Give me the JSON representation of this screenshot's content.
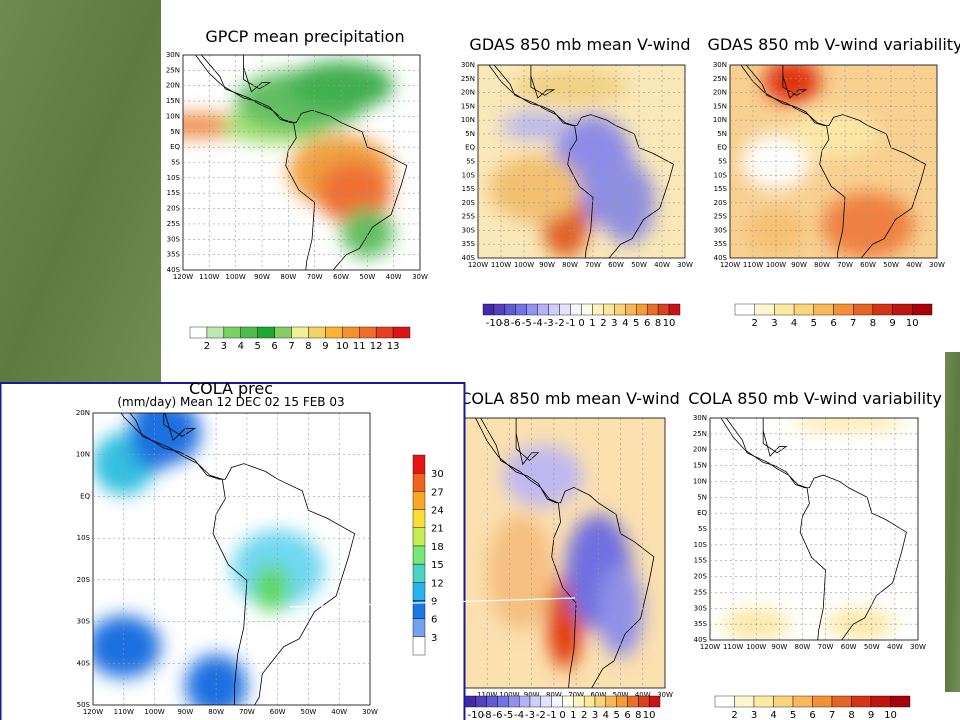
{
  "panels": [
    {
      "title": "GPCP mean precipitation",
      "lat_labels": [
        "30N",
        "25N",
        "20N",
        "15N",
        "10N",
        "5N",
        "EQ",
        "5S",
        "10S",
        "15S",
        "20S",
        "25S",
        "30S",
        "35S",
        "40S"
      ],
      "lon_labels": [
        "120W",
        "110W",
        "100W",
        "90W",
        "80W",
        "70W",
        "60W",
        "50W",
        "40W",
        "30W"
      ],
      "colorbar_labels": [
        2,
        3,
        4,
        5,
        6,
        7,
        8,
        9,
        10,
        11,
        12,
        13
      ]
    },
    {
      "title": "GDAS 850 mb mean V-wind",
      "lat_labels": [
        "30N",
        "25N",
        "20N",
        "15N",
        "10N",
        "5N",
        "EQ",
        "5S",
        "10S",
        "15S",
        "20S",
        "25S",
        "30S",
        "35S",
        "40S"
      ],
      "lon_labels": [
        "120W",
        "110W",
        "100W",
        "90W",
        "80W",
        "70W",
        "60W",
        "50W",
        "40W",
        "30W"
      ],
      "colorbar_labels": [
        -10,
        -8,
        -6,
        -5,
        -4,
        -3,
        -2,
        -1,
        0,
        1,
        2,
        3,
        4,
        5,
        6,
        8,
        10
      ]
    },
    {
      "title": "GDAS 850 mb V-wind variability",
      "lat_labels": [
        "30N",
        "25N",
        "20N",
        "15N",
        "10N",
        "5N",
        "EQ",
        "5S",
        "10S",
        "15S",
        "20S",
        "25S",
        "30S",
        "35S",
        "40S"
      ],
      "lon_labels": [
        "120W",
        "110W",
        "100W",
        "90W",
        "80W",
        "70W",
        "60W",
        "50W",
        "40W",
        "30W"
      ],
      "colorbar_labels": [
        2,
        3,
        4,
        5,
        6,
        7,
        8,
        9,
        10
      ]
    },
    {
      "title": "COLA 850 mb mean V-wind",
      "lat_labels": [],
      "lon_labels": [
        "110W",
        "100W",
        "90W",
        "80W",
        "70W",
        "60W",
        "50W",
        "40W",
        "30W"
      ],
      "colorbar_labels": [
        -10,
        -8,
        -6,
        -5,
        -4,
        -3,
        -2,
        -1,
        0,
        1,
        2,
        3,
        4,
        5,
        6,
        8,
        10
      ]
    },
    {
      "title": "COLA 850 mb V-wind variability",
      "lat_labels": [
        "30N",
        "25N",
        "20N",
        "15N",
        "10N",
        "5N",
        "EQ",
        "5S",
        "10S",
        "15S",
        "20S",
        "25S",
        "30S",
        "35S",
        "40S"
      ],
      "lon_labels": [
        "120W",
        "110W",
        "100W",
        "90W",
        "80W",
        "70W",
        "60W",
        "50W",
        "40W",
        "30W"
      ],
      "colorbar_labels": [
        2,
        3,
        4,
        5,
        6,
        7,
        8,
        9,
        10
      ]
    },
    {
      "title": "COLA prec",
      "subtitle": "(mm/day) Mean 12 DEC 02 15 FEB 03",
      "lat_labels": [
        "20N",
        "10N",
        "EQ",
        "10S",
        "20S",
        "30S",
        "40S",
        "50S"
      ],
      "lon_labels": [
        "120W",
        "110W",
        "100W",
        "90W",
        "80W",
        "70W",
        "60W",
        "50W",
        "40W",
        "30W"
      ],
      "colorbar_labels": [
        3,
        6,
        9,
        12,
        15,
        18,
        21,
        24,
        27,
        30
      ]
    }
  ]
}
